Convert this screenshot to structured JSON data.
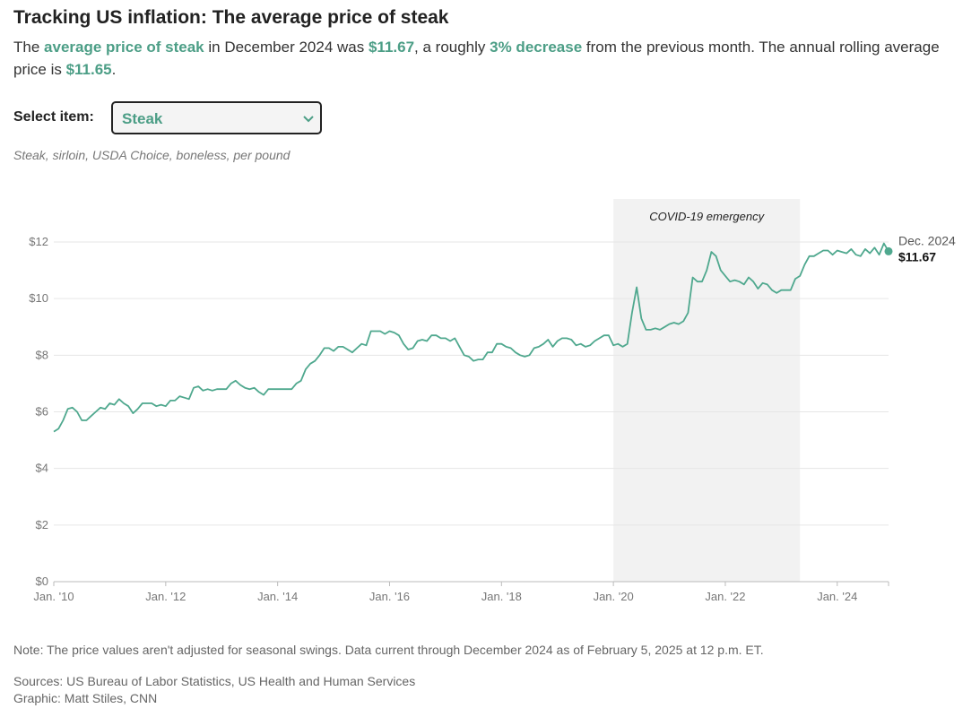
{
  "chart_data": {
    "type": "line",
    "title": "Tracking US inflation: The average price of steak",
    "subtitle_parts": [
      "The ",
      "average price of steak",
      " in December 2024 was ",
      "$11.67",
      ", a roughly ",
      "3% decrease",
      " from the previous month. The annual rolling average price is ",
      "$11.65",
      "."
    ],
    "units": "Steak, sirloin, USDA Choice, boneless, per pound",
    "x": [
      "2010-01",
      "2010-02",
      "2010-03",
      "2010-04",
      "2010-05",
      "2010-06",
      "2010-07",
      "2010-08",
      "2010-09",
      "2010-10",
      "2010-11",
      "2010-12",
      "2011-01",
      "2011-02",
      "2011-03",
      "2011-04",
      "2011-05",
      "2011-06",
      "2011-07",
      "2011-08",
      "2011-09",
      "2011-10",
      "2011-11",
      "2011-12",
      "2012-01",
      "2012-02",
      "2012-03",
      "2012-04",
      "2012-05",
      "2012-06",
      "2012-07",
      "2012-08",
      "2012-09",
      "2012-10",
      "2012-11",
      "2012-12",
      "2013-01",
      "2013-02",
      "2013-03",
      "2013-04",
      "2013-05",
      "2013-06",
      "2013-07",
      "2013-08",
      "2013-09",
      "2013-10",
      "2013-11",
      "2013-12",
      "2014-01",
      "2014-02",
      "2014-03",
      "2014-04",
      "2014-05",
      "2014-06",
      "2014-07",
      "2014-08",
      "2014-09",
      "2014-10",
      "2014-11",
      "2014-12",
      "2015-01",
      "2015-02",
      "2015-03",
      "2015-04",
      "2015-05",
      "2015-06",
      "2015-07",
      "2015-08",
      "2015-09",
      "2015-10",
      "2015-11",
      "2015-12",
      "2016-01",
      "2016-02",
      "2016-03",
      "2016-04",
      "2016-05",
      "2016-06",
      "2016-07",
      "2016-08",
      "2016-09",
      "2016-10",
      "2016-11",
      "2016-12",
      "2017-01",
      "2017-02",
      "2017-03",
      "2017-04",
      "2017-05",
      "2017-06",
      "2017-07",
      "2017-08",
      "2017-09",
      "2017-10",
      "2017-11",
      "2017-12",
      "2018-01",
      "2018-02",
      "2018-03",
      "2018-04",
      "2018-05",
      "2018-06",
      "2018-07",
      "2018-08",
      "2018-09",
      "2018-10",
      "2018-11",
      "2018-12",
      "2019-01",
      "2019-02",
      "2019-03",
      "2019-04",
      "2019-05",
      "2019-06",
      "2019-07",
      "2019-08",
      "2019-09",
      "2019-10",
      "2019-11",
      "2019-12",
      "2020-01",
      "2020-02",
      "2020-03",
      "2020-04",
      "2020-05",
      "2020-06",
      "2020-07",
      "2020-08",
      "2020-09",
      "2020-10",
      "2020-11",
      "2020-12",
      "2021-01",
      "2021-02",
      "2021-03",
      "2021-04",
      "2021-05",
      "2021-06",
      "2021-07",
      "2021-08",
      "2021-09",
      "2021-10",
      "2021-11",
      "2021-12",
      "2022-01",
      "2022-02",
      "2022-03",
      "2022-04",
      "2022-05",
      "2022-06",
      "2022-07",
      "2022-08",
      "2022-09",
      "2022-10",
      "2022-11",
      "2022-12",
      "2023-01",
      "2023-02",
      "2023-03",
      "2023-04",
      "2023-05",
      "2023-06",
      "2023-07",
      "2023-08",
      "2023-09",
      "2023-10",
      "2023-11",
      "2023-12",
      "2024-01",
      "2024-02",
      "2024-03",
      "2024-04",
      "2024-05",
      "2024-06",
      "2024-07",
      "2024-08",
      "2024-09",
      "2024-10",
      "2024-11",
      "2024-12"
    ],
    "series": [
      {
        "name": "Steak",
        "color": "#4fa88e",
        "values": [
          5.3,
          5.4,
          5.7,
          6.1,
          6.15,
          6.0,
          5.7,
          5.7,
          5.85,
          6.0,
          6.15,
          6.1,
          6.3,
          6.25,
          6.45,
          6.3,
          6.2,
          5.95,
          6.1,
          6.3,
          6.3,
          6.3,
          6.2,
          6.25,
          6.2,
          6.4,
          6.4,
          6.55,
          6.5,
          6.45,
          6.85,
          6.9,
          6.75,
          6.8,
          6.75,
          6.8,
          6.8,
          6.8,
          7.0,
          7.1,
          6.95,
          6.85,
          6.8,
          6.85,
          6.7,
          6.6,
          6.8,
          6.8,
          6.8,
          6.8,
          6.8,
          6.8,
          7.0,
          7.1,
          7.5,
          7.7,
          7.8,
          8.0,
          8.25,
          8.25,
          8.15,
          8.3,
          8.3,
          8.2,
          8.1,
          8.25,
          8.4,
          8.35,
          8.85,
          8.85,
          8.85,
          8.75,
          8.85,
          8.8,
          8.7,
          8.4,
          8.2,
          8.25,
          8.5,
          8.55,
          8.5,
          8.7,
          8.7,
          8.6,
          8.6,
          8.5,
          8.6,
          8.3,
          8.0,
          7.95,
          7.8,
          7.85,
          7.85,
          8.1,
          8.1,
          8.4,
          8.4,
          8.3,
          8.25,
          8.1,
          8.0,
          7.95,
          8.0,
          8.25,
          8.3,
          8.4,
          8.55,
          8.3,
          8.5,
          8.6,
          8.6,
          8.55,
          8.35,
          8.4,
          8.3,
          8.35,
          8.5,
          8.6,
          8.7,
          8.7,
          8.35,
          8.4,
          8.3,
          8.4,
          9.5,
          10.4,
          9.3,
          8.9,
          8.9,
          8.95,
          8.9,
          9.0,
          9.1,
          9.15,
          9.1,
          9.2,
          9.5,
          10.75,
          10.6,
          10.6,
          11.0,
          11.65,
          11.5,
          11.0,
          10.8,
          10.6,
          10.65,
          10.6,
          10.5,
          10.75,
          10.6,
          10.35,
          10.55,
          10.5,
          10.3,
          10.2,
          10.3,
          10.3,
          10.3,
          10.7,
          10.8,
          11.2,
          11.5,
          11.5,
          11.6,
          11.7,
          11.7,
          11.55,
          11.7,
          11.65,
          11.6,
          11.75,
          11.55,
          11.5,
          11.75,
          11.6,
          11.8,
          11.55,
          11.95,
          11.67
        ]
      }
    ],
    "end_label": {
      "x_label": "Dec. 2024",
      "value_label": "$11.67"
    },
    "shade": {
      "label": "COVID-19 emergency",
      "x": [
        "2020-01",
        "2023-05"
      ]
    },
    "xlim": [
      "2010-01",
      "2024-12"
    ],
    "xticks": [
      {
        "value": "2010-01",
        "label": "Jan. '10"
      },
      {
        "value": "2012-01",
        "label": "Jan. '12"
      },
      {
        "value": "2014-01",
        "label": "Jan. '14"
      },
      {
        "value": "2016-01",
        "label": "Jan. '16"
      },
      {
        "value": "2018-01",
        "label": "Jan. '18"
      },
      {
        "value": "2020-01",
        "label": "Jan. '20"
      },
      {
        "value": "2022-01",
        "label": "Jan. '22"
      },
      {
        "value": "2024-01",
        "label": "Jan. '24"
      }
    ],
    "ylim": [
      0,
      12
    ],
    "yticks": [
      {
        "value": 0,
        "label": "$0"
      },
      {
        "value": 2,
        "label": "$2"
      },
      {
        "value": 4,
        "label": "$4"
      },
      {
        "value": 6,
        "label": "$6"
      },
      {
        "value": 8,
        "label": "$8"
      },
      {
        "value": 10,
        "label": "$10"
      },
      {
        "value": 12,
        "label": "$12"
      }
    ],
    "grid": true
  },
  "select": {
    "label": "Select item:",
    "value": "Steak"
  },
  "footer": {
    "note": "Note: The price values aren't adjusted for seasonal swings. Data current through December 2024 as of February 5, 2025 at 12 p.m. ET.",
    "sources": "Sources: US Bureau of Labor Statistics, US Health and Human Services",
    "credit": "Graphic: Matt Stiles, CNN"
  }
}
